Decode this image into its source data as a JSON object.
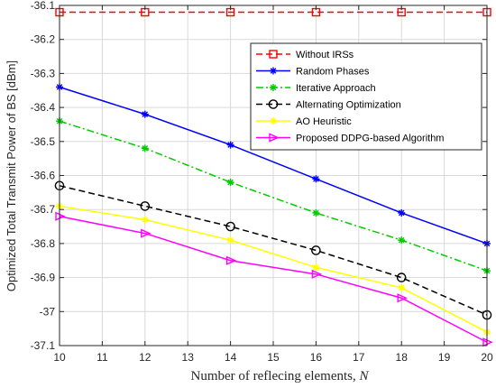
{
  "chart_data": {
    "type": "line",
    "title": "",
    "xlabel": "Number of reflecing elements, ",
    "xlabel_italic": "N",
    "ylabel": "Optimized Total Transmit Power of BS [dBm]",
    "xlim": [
      10,
      20
    ],
    "ylim": [
      -37.1,
      -36.1
    ],
    "x_ticks": [
      10,
      11,
      12,
      13,
      14,
      15,
      16,
      17,
      18,
      19,
      20
    ],
    "y_ticks": [
      -36.1,
      -36.2,
      -36.3,
      -36.4,
      -36.5,
      -36.6,
      -36.7,
      -36.8,
      -36.9,
      -37,
      -37.1
    ],
    "grid": true,
    "legend_position": "top-right",
    "x": [
      10,
      12,
      14,
      16,
      18,
      20
    ],
    "series": [
      {
        "name": "Without IRSs",
        "color": "#ff0000",
        "dash": "dashed",
        "marker": "square",
        "values": [
          -36.12,
          -36.12,
          -36.12,
          -36.12,
          -36.12,
          -36.12
        ]
      },
      {
        "name": "Random Phases",
        "color": "#0000ff",
        "dash": "solid",
        "marker": "asterisk",
        "values": [
          -36.34,
          -36.42,
          -36.51,
          -36.61,
          -36.71,
          -36.8
        ]
      },
      {
        "name": "Iterative Approach",
        "color": "#00cc00",
        "dash": "dashdot",
        "marker": "asterisk",
        "values": [
          -36.44,
          -36.52,
          -36.62,
          -36.71,
          -36.79,
          -36.88
        ]
      },
      {
        "name": "Alternating Optimization",
        "color": "#000000",
        "dash": "dashed",
        "marker": "circle",
        "values": [
          -36.63,
          -36.69,
          -36.75,
          -36.82,
          -36.9,
          -37.01
        ]
      },
      {
        "name": "AO Heuristic",
        "color": "#ffff00",
        "dash": "solid",
        "marker": "asterisk",
        "values": [
          -36.69,
          -36.73,
          -36.79,
          -36.87,
          -36.93,
          -37.06
        ]
      },
      {
        "name": "Proposed DDPG-based Algorithm",
        "color": "#ff00ff",
        "dash": "solid",
        "marker": "triangle-right",
        "values": [
          -36.72,
          -36.77,
          -36.85,
          -36.89,
          -36.96,
          -37.09
        ]
      }
    ]
  }
}
